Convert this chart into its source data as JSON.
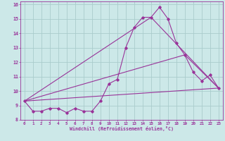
{
  "xlabel": "Windchill (Refroidissement éolien,°C)",
  "xlim": [
    -0.5,
    23.5
  ],
  "ylim": [
    8,
    16.2
  ],
  "yticks": [
    8,
    9,
    10,
    11,
    12,
    13,
    14,
    15,
    16
  ],
  "xticks": [
    0,
    1,
    2,
    3,
    4,
    5,
    6,
    7,
    8,
    9,
    10,
    11,
    12,
    13,
    14,
    15,
    16,
    17,
    18,
    19,
    20,
    21,
    22,
    23
  ],
  "bg_color": "#cce8e8",
  "line_color": "#993399",
  "grid_color": "#aacccc",
  "line1_x": [
    0,
    1,
    2,
    3,
    4,
    5,
    6,
    7,
    8,
    9,
    10,
    11,
    12,
    13,
    14,
    15,
    16,
    17,
    18,
    19,
    20,
    21,
    22,
    23
  ],
  "line1_y": [
    9.3,
    8.6,
    8.6,
    8.8,
    8.8,
    8.5,
    8.8,
    8.6,
    8.6,
    9.3,
    10.5,
    10.8,
    13.0,
    14.4,
    15.1,
    15.1,
    15.8,
    15.0,
    13.3,
    12.5,
    11.3,
    10.7,
    11.1,
    10.2
  ],
  "line2_x": [
    0,
    23
  ],
  "line2_y": [
    9.3,
    10.2
  ],
  "line3_x": [
    0,
    15,
    23
  ],
  "line3_y": [
    9.3,
    15.1,
    10.2
  ],
  "line4_x": [
    0,
    19,
    23
  ],
  "line4_y": [
    9.3,
    12.5,
    10.2
  ]
}
